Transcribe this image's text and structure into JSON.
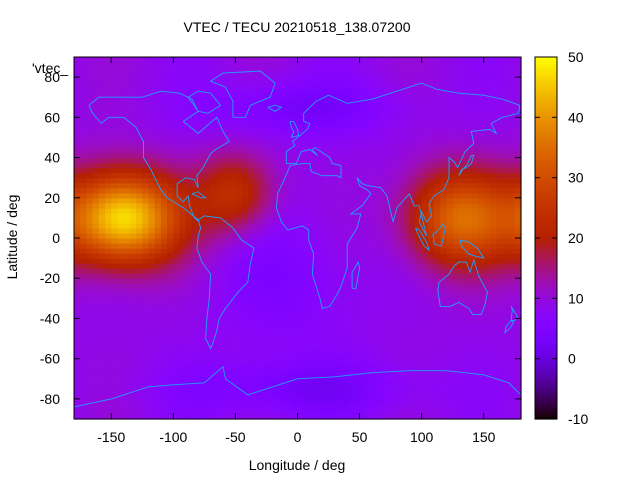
{
  "chart_data": {
    "type": "heatmap",
    "title": "VTEC / TECU 20210518_138.07200",
    "xlabel": "Longitude / deg",
    "ylabel": "Latitude / deg",
    "key_label": "'vtec_",
    "xlim": [
      -180,
      180
    ],
    "ylim": [
      -90,
      90
    ],
    "xticks": [
      -150,
      -100,
      -50,
      0,
      50,
      100,
      150
    ],
    "yticks": [
      -80,
      -60,
      -40,
      -20,
      0,
      20,
      40,
      60,
      80
    ],
    "colorbar": {
      "range": [
        -10,
        50
      ],
      "ticks": [
        -10,
        0,
        10,
        20,
        30,
        40,
        50
      ],
      "palette": "gnuplot-pm3d-rgbformulae-7-5-15"
    },
    "background_level": 9,
    "features": [
      {
        "name": "equatorial-anomaly-pacific",
        "lon": -140,
        "lat": 10,
        "peak": 48
      },
      {
        "name": "equatorial-anomaly-west-pacific",
        "lon": 130,
        "lat": 10,
        "peak": 34
      },
      {
        "name": "enhancement-atlantic",
        "lon": -50,
        "lat": 22,
        "peak": 24
      },
      {
        "name": "depletion-north-europe",
        "lon": 0,
        "lat": 65,
        "peak": 3
      },
      {
        "name": "depletion-antarctica",
        "lon": 0,
        "lat": -75,
        "peak": 3
      },
      {
        "name": "depletion-south-atlantic",
        "lon": -10,
        "lat": -20,
        "peak": 5
      }
    ],
    "map_overlay": "world coastlines",
    "colors": {
      "coastline": "#1fa0ff",
      "frame": "#000000"
    }
  }
}
